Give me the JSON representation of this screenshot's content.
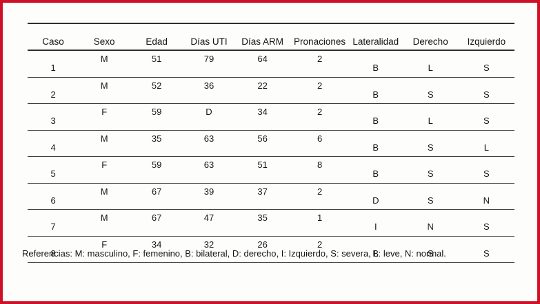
{
  "colors": {
    "frame_border": "#ce1126",
    "rule_heavy": "#2e2e2e",
    "rule_light": "#3f3f3f",
    "text": "#161616"
  },
  "table": {
    "columns": [
      "Caso",
      "Sexo",
      "Edad",
      "Días UTI",
      "Días ARM",
      "Pronaciones",
      "Lateralidad",
      "Derecho",
      "Izquierdo"
    ],
    "rows": [
      [
        "1",
        "M",
        "51",
        "79",
        "64",
        "2",
        "B",
        "L",
        "S"
      ],
      [
        "2",
        "M",
        "52",
        "36",
        "22",
        "2",
        "B",
        "S",
        "S"
      ],
      [
        "3",
        "F",
        "59",
        "D",
        "34",
        "2",
        "B",
        "L",
        "S"
      ],
      [
        "4",
        "M",
        "35",
        "63",
        "56",
        "6",
        "B",
        "S",
        "L"
      ],
      [
        "5",
        "F",
        "59",
        "63",
        "51",
        "8",
        "B",
        "S",
        "S"
      ],
      [
        "6",
        "M",
        "67",
        "39",
        "37",
        "2",
        "D",
        "S",
        "N"
      ],
      [
        "7",
        "M",
        "67",
        "47",
        "35",
        "1",
        "I",
        "N",
        "S"
      ],
      [
        "8",
        "F",
        "34",
        "32",
        "26",
        "2",
        "B",
        "S",
        "S"
      ]
    ]
  },
  "footnote": "Referencias: M: masculino, F: femenino, B: bilateral, D: derecho, I: Izquierdo, S: severa, L: leve, N: normal."
}
